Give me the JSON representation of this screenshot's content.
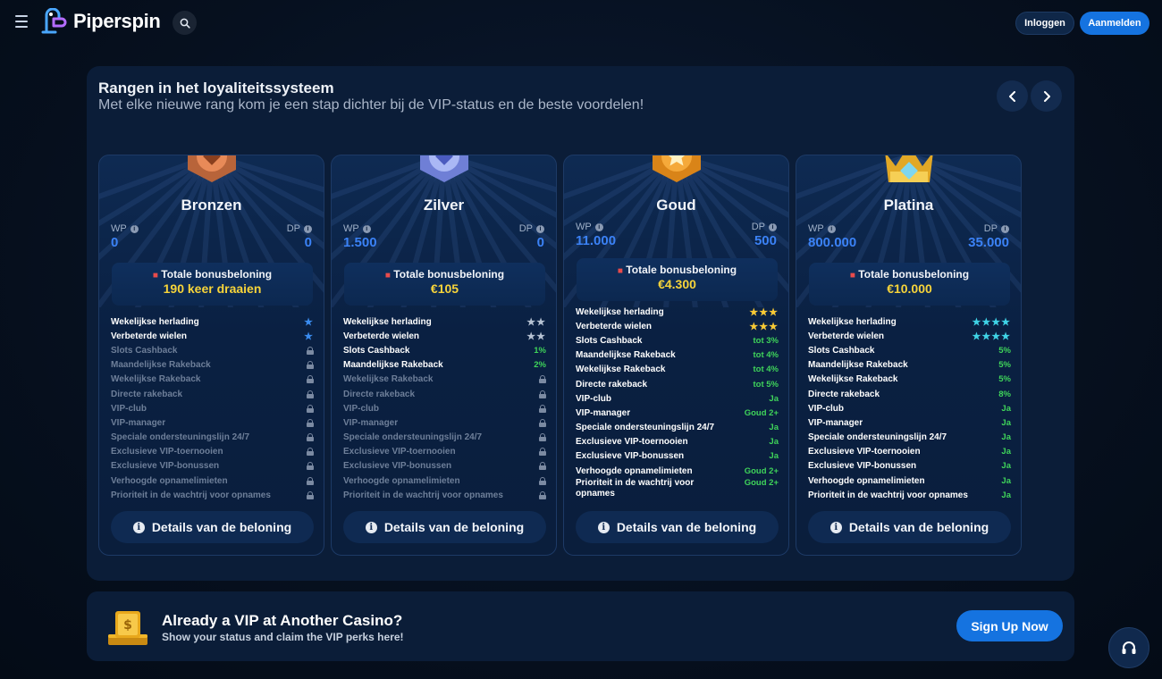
{
  "header": {
    "logo_text": "Piperspin",
    "login_label": "Inloggen",
    "register_label": "Aanmelden"
  },
  "panel": {
    "title": "Rangen in het loyaliteitssysteem",
    "subtitle": "Met elke nieuwe rang kom je een stap dichter bij de VIP-status en de beste voordelen!"
  },
  "cards": [
    {
      "name": "Bronzen",
      "wp_label": "WP",
      "wp_value": "0",
      "dp_label": "DP",
      "dp_value": "0",
      "bonus_title": "Totale bonusbeloning",
      "bonus_value": "190 keer draaien",
      "features": [
        {
          "label": "Wekelijkse herlading",
          "value": "★",
          "locked": false
        },
        {
          "label": "Verbeterde wielen",
          "value": "★",
          "locked": false
        },
        {
          "label": "Slots Cashback",
          "locked": true
        },
        {
          "label": "Maandelijkse Rakeback",
          "locked": true
        },
        {
          "label": "Wekelijkse Rakeback",
          "locked": true
        },
        {
          "label": "Directe rakeback",
          "locked": true
        },
        {
          "label": "VIP-club",
          "locked": true
        },
        {
          "label": "VIP-manager",
          "locked": true
        },
        {
          "label": "Speciale ondersteuningslijn 24/7",
          "locked": true
        },
        {
          "label": "Exclusieve VIP-toernooien",
          "locked": true
        },
        {
          "label": "Exclusieve VIP-bonussen",
          "locked": true
        },
        {
          "label": "Verhoogde opnamelimieten",
          "locked": true
        },
        {
          "label": "Prioriteit in de wachtrij voor opnames",
          "locked": true
        }
      ],
      "details_label": "Details van de beloning"
    },
    {
      "name": "Zilver",
      "wp_label": "WP",
      "wp_value": "1.500",
      "dp_label": "DP",
      "dp_value": "0",
      "bonus_title": "Totale bonusbeloning",
      "bonus_value": "€105",
      "features": [
        {
          "label": "Wekelijkse herlading",
          "value": "★★",
          "locked": false
        },
        {
          "label": "Verbeterde wielen",
          "value": "★★",
          "locked": false
        },
        {
          "label": "Slots Cashback",
          "value": "1%",
          "locked": false
        },
        {
          "label": "Maandelijkse Rakeback",
          "value": "2%",
          "locked": false
        },
        {
          "label": "Wekelijkse Rakeback",
          "locked": true
        },
        {
          "label": "Directe rakeback",
          "locked": true
        },
        {
          "label": "VIP-club",
          "locked": true
        },
        {
          "label": "VIP-manager",
          "locked": true
        },
        {
          "label": "Speciale ondersteuningslijn 24/7",
          "locked": true
        },
        {
          "label": "Exclusieve VIP-toernooien",
          "locked": true
        },
        {
          "label": "Exclusieve VIP-bonussen",
          "locked": true
        },
        {
          "label": "Verhoogde opnamelimieten",
          "locked": true
        },
        {
          "label": "Prioriteit in de wachtrij voor opnames",
          "locked": true
        }
      ],
      "details_label": "Details van de beloning"
    },
    {
      "name": "Goud",
      "wp_label": "WP",
      "wp_value": "11.000",
      "dp_label": "DP",
      "dp_value": "500",
      "bonus_title": "Totale bonusbeloning",
      "bonus_value": "€4.300",
      "features": [
        {
          "label": "Wekelijkse herlading",
          "value": "★★★",
          "locked": false
        },
        {
          "label": "Verbeterde wielen",
          "value": "★★★",
          "locked": false
        },
        {
          "label": "Slots Cashback",
          "value": "tot 3%",
          "locked": false
        },
        {
          "label": "Maandelijkse Rakeback",
          "value": "tot 4%",
          "locked": false
        },
        {
          "label": "Wekelijkse Rakeback",
          "value": "tot 4%",
          "locked": false
        },
        {
          "label": "Directe rakeback",
          "value": "tot 5%",
          "locked": false
        },
        {
          "label": "VIP-club",
          "value": "Ja",
          "locked": false
        },
        {
          "label": "VIP-manager",
          "value": "Goud 2+",
          "locked": false
        },
        {
          "label": "Speciale ondersteuningslijn 24/7",
          "value": "Ja",
          "locked": false
        },
        {
          "label": "Exclusieve VIP-toernooien",
          "value": "Ja",
          "locked": false
        },
        {
          "label": "Exclusieve VIP-bonussen",
          "value": "Ja",
          "locked": false
        },
        {
          "label": "Verhoogde opnamelimieten",
          "value": "Goud 2+",
          "locked": false
        },
        {
          "label": "Prioriteit in de wachtrij voor opnames",
          "value": "Goud 2+",
          "locked": false
        }
      ],
      "details_label": "Details van de beloning"
    },
    {
      "name": "Platina",
      "wp_label": "WP",
      "wp_value": "800.000",
      "dp_label": "DP",
      "dp_value": "35.000",
      "bonus_title": "Totale bonusbeloning",
      "bonus_value": "€10.000",
      "features": [
        {
          "label": "Wekelijkse herlading",
          "value": "★★★★",
          "locked": false
        },
        {
          "label": "Verbeterde wielen",
          "value": "★★★★",
          "locked": false
        },
        {
          "label": "Slots Cashback",
          "value": "5%",
          "locked": false
        },
        {
          "label": "Maandelijkse Rakeback",
          "value": "5%",
          "locked": false
        },
        {
          "label": "Wekelijkse Rakeback",
          "value": "5%",
          "locked": false
        },
        {
          "label": "Directe rakeback",
          "value": "8%",
          "locked": false
        },
        {
          "label": "VIP-club",
          "value": "Ja",
          "locked": false
        },
        {
          "label": "VIP-manager",
          "value": "Ja",
          "locked": false
        },
        {
          "label": "Speciale ondersteuningslijn 24/7",
          "value": "Ja",
          "locked": false
        },
        {
          "label": "Exclusieve VIP-toernooien",
          "value": "Ja",
          "locked": false
        },
        {
          "label": "Exclusieve VIP-bonussen",
          "value": "Ja",
          "locked": false
        },
        {
          "label": "Verhoogde opnamelimieten",
          "value": "Ja",
          "locked": false
        },
        {
          "label": "Prioriteit in de wachtrij voor opnames",
          "value": "Ja",
          "locked": false
        }
      ],
      "details_label": "Details van de beloning"
    }
  ],
  "banner": {
    "title": "Already a VIP at Another Casino?",
    "subtitle": "Show your status and claim the VIP perks here!",
    "button_label": "Sign Up Now"
  },
  "colors": {
    "accent": "#1573e0",
    "value_blue": "#3b82f6",
    "bonus_gold": "#f7d43a",
    "perk_green": "#3fd45a"
  }
}
